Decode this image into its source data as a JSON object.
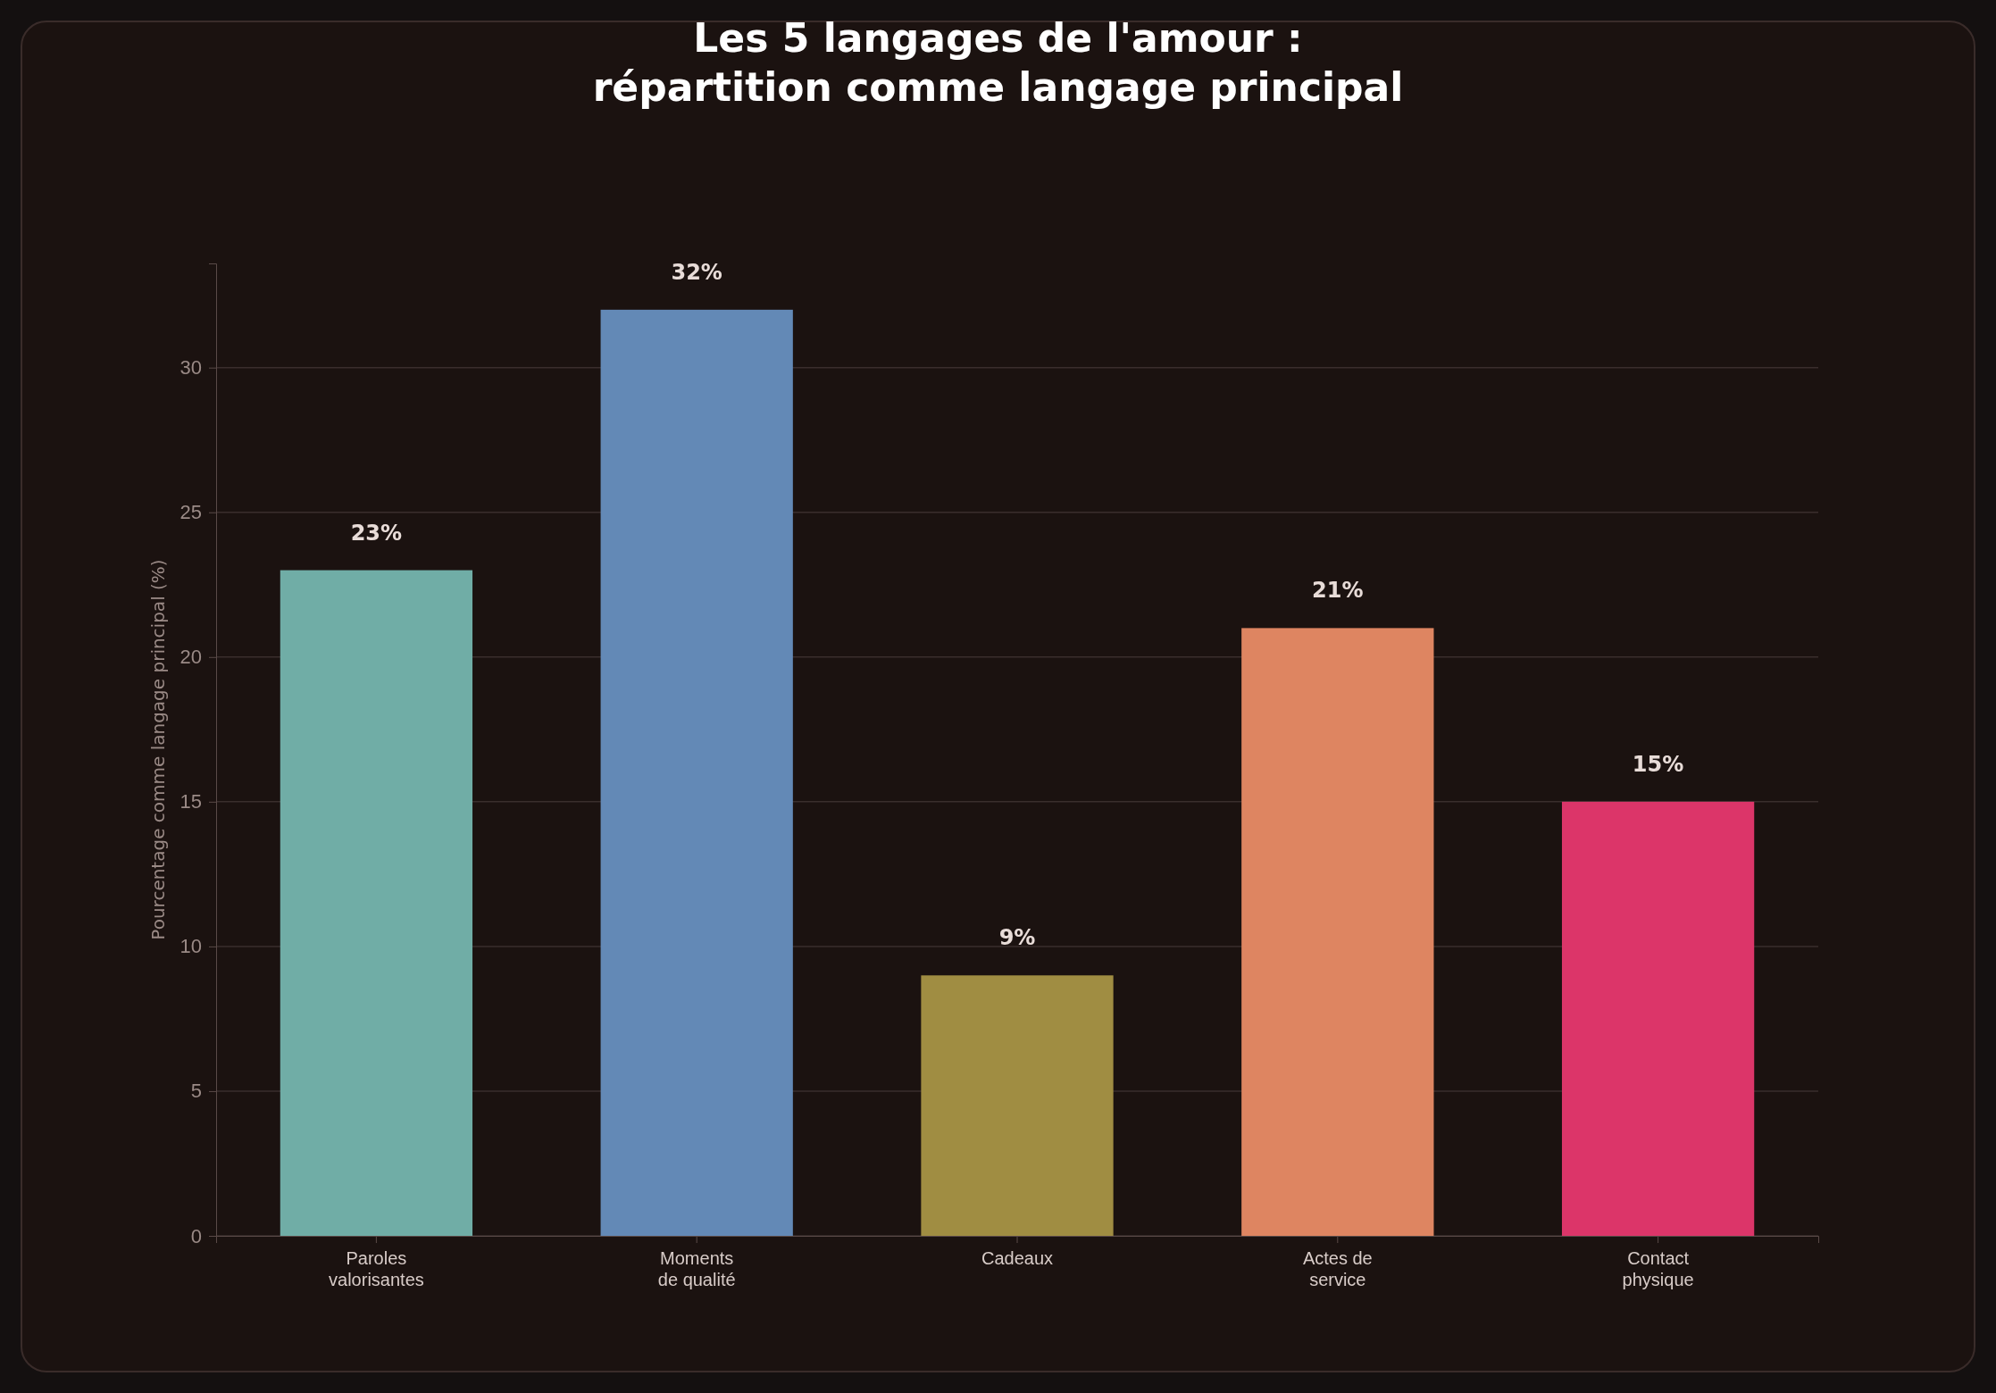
{
  "chart_data": {
    "type": "bar",
    "title": "Les 5 langages de l'amour :\nrépartition comme langage principal",
    "ylabel": "Pourcentage comme langage principal (%)",
    "categories": [
      "Paroles\nvalorisantes",
      "Moments\nde qualité",
      "Cadeaux",
      "Actes de\nservice",
      "Contact\nphysique"
    ],
    "values": [
      23,
      32,
      9,
      21,
      15
    ],
    "value_labels": [
      "23%",
      "32%",
      "9%",
      "21%",
      "15%"
    ],
    "colors": [
      "#70ada6",
      "#6389b6",
      "#a08d42",
      "#de8561",
      "#dc3569"
    ],
    "ylim": [
      0,
      33.6
    ],
    "yticks": [
      0,
      5,
      10,
      15,
      20,
      25,
      30
    ],
    "grid": "y"
  }
}
